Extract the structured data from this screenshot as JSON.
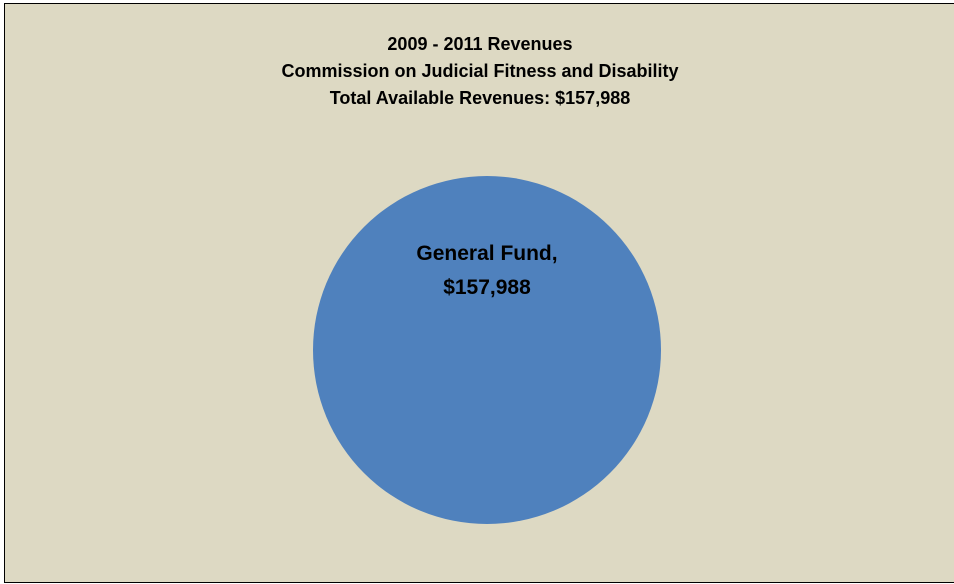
{
  "chart_data": {
    "type": "pie",
    "title_lines": [
      "2009 - 2011 Revenues",
      "Commission on Judicial Fitness and Disability",
      "Total Available Revenues: $157,988"
    ],
    "categories": [
      "General Fund"
    ],
    "values": [
      157988
    ],
    "data_labels": [
      [
        "General Fund,",
        "$157,988"
      ]
    ],
    "colors": [
      "#4f81bd"
    ],
    "background": "#ddd9c3",
    "legend": "none"
  }
}
